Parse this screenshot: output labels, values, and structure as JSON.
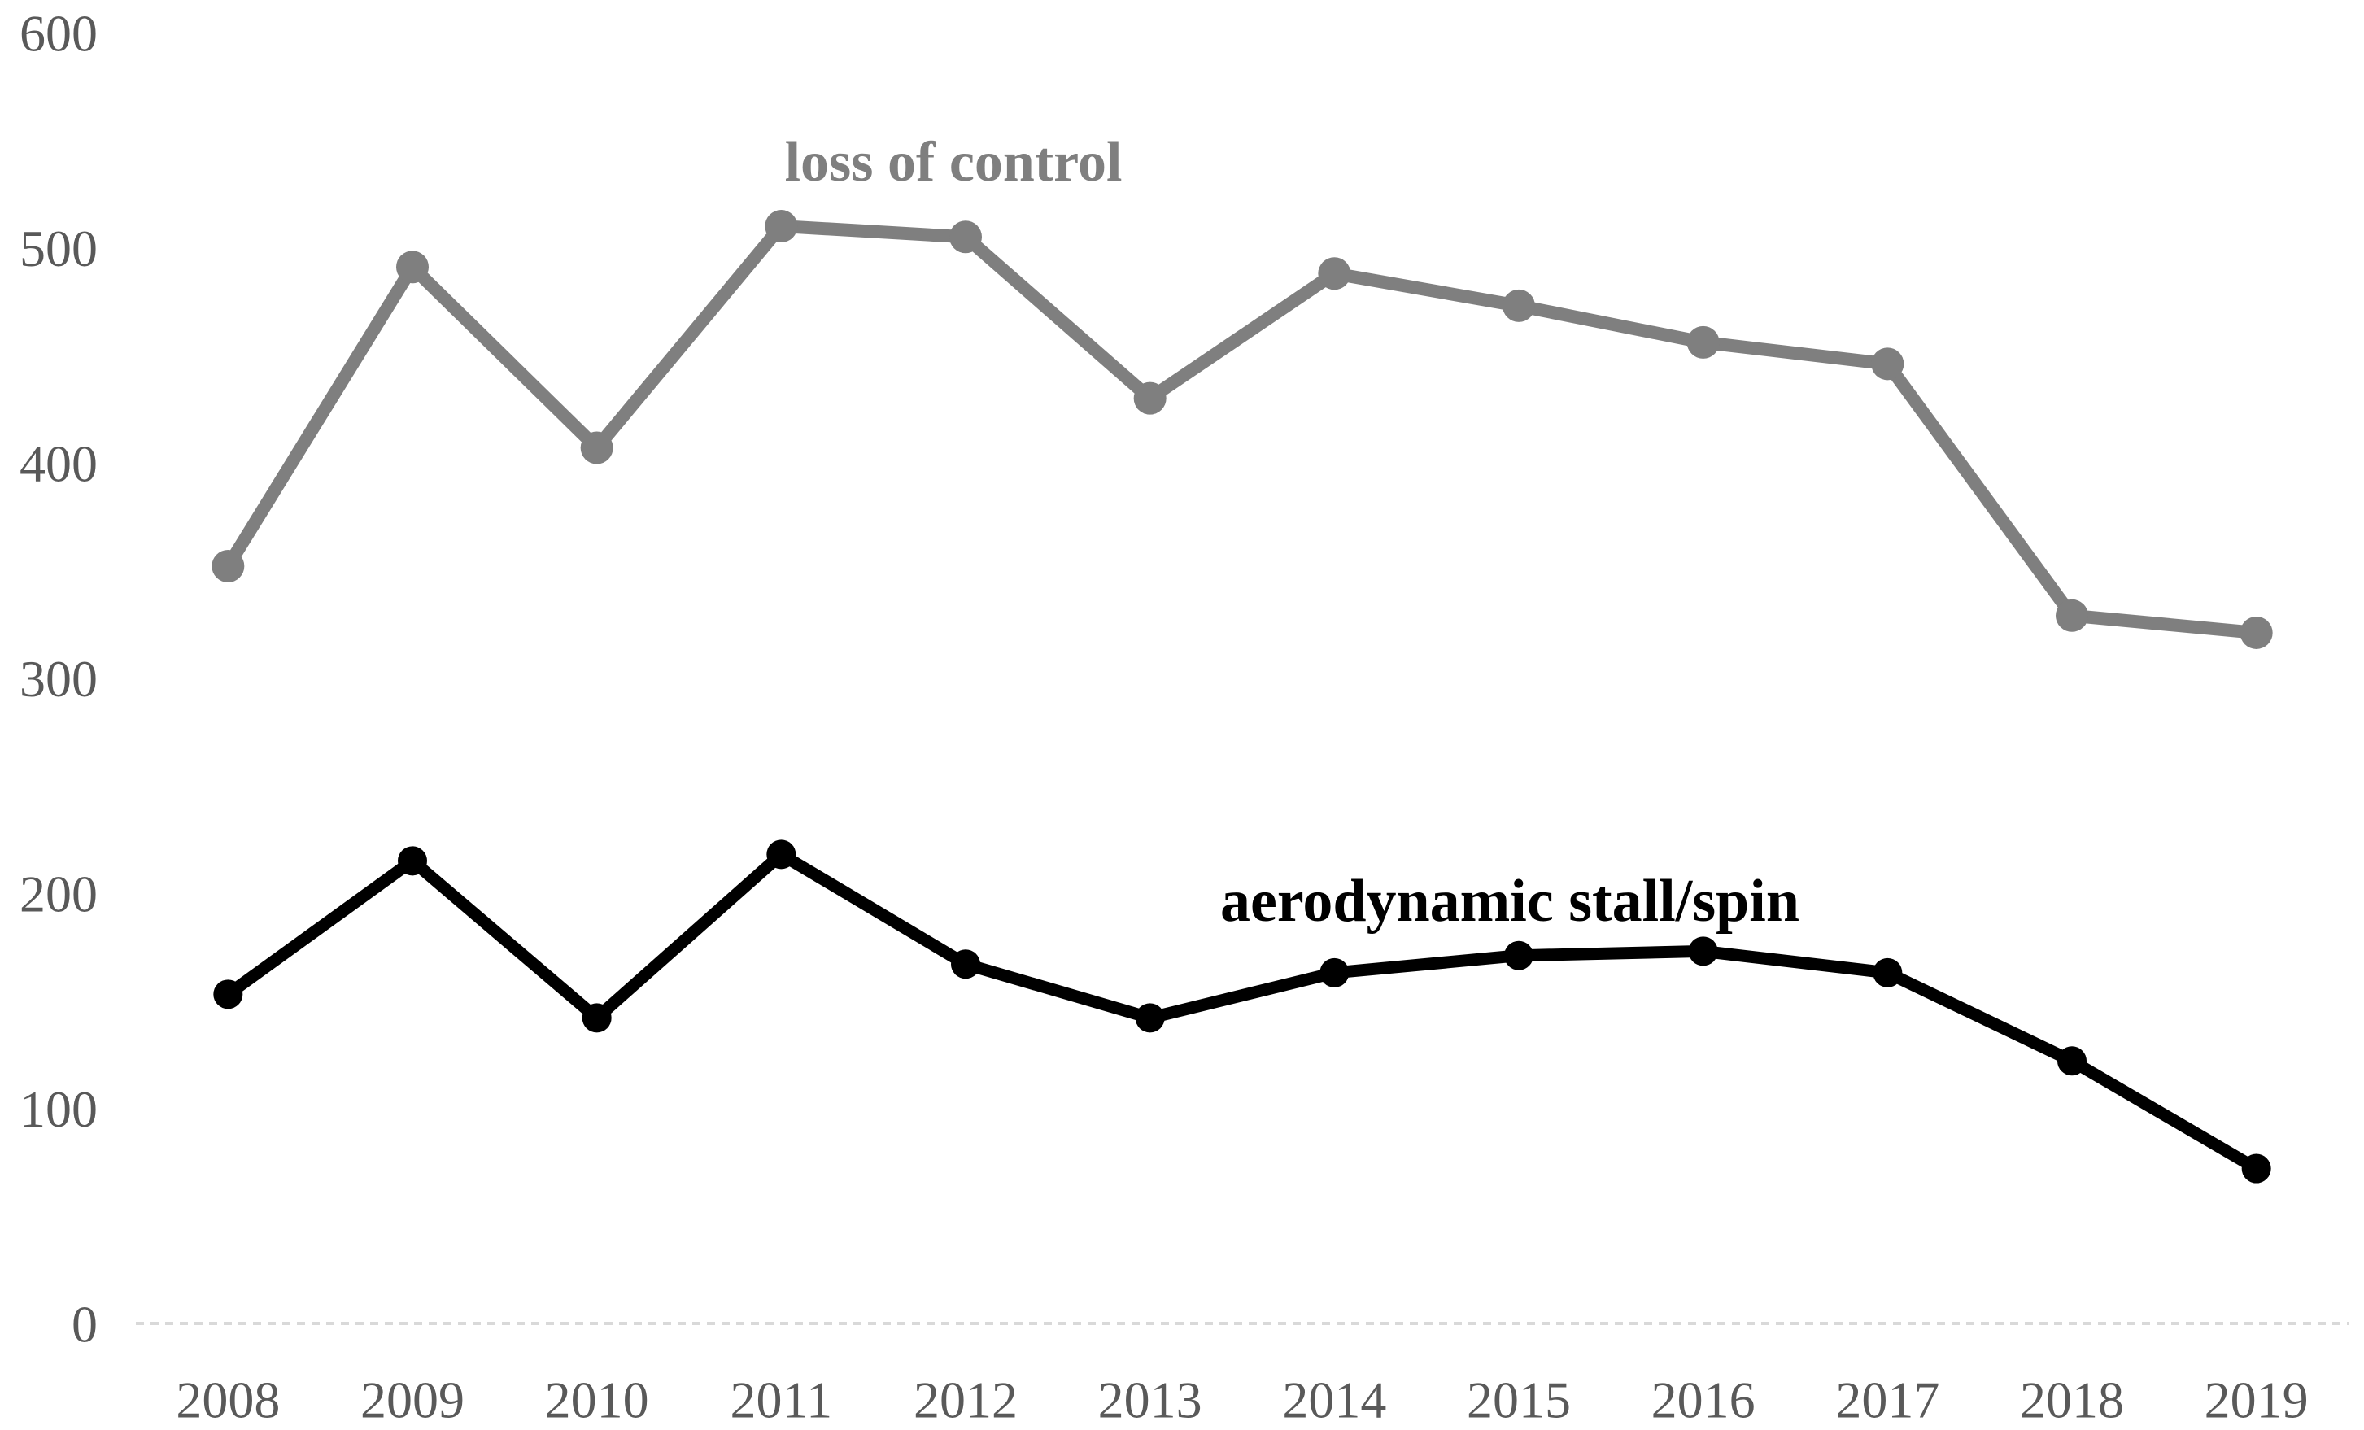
{
  "chart_data": {
    "type": "line",
    "title": "",
    "xlabel": "",
    "ylabel": "",
    "categories": [
      "2008",
      "2009",
      "2010",
      "2011",
      "2012",
      "2013",
      "2014",
      "2015",
      "2016",
      "2017",
      "2018",
      "2019"
    ],
    "series": [
      {
        "name": "loss of control",
        "color": "#7f7f7f",
        "values": [
          352,
          491,
          407,
          510,
          505,
          430,
          488,
          473,
          456,
          446,
          329,
          321
        ]
      },
      {
        "name": "aerodynamic stall/spin",
        "color": "#000000",
        "values": [
          153,
          215,
          142,
          218,
          167,
          142,
          163,
          171,
          173,
          163,
          122,
          72
        ]
      }
    ],
    "ylim": [
      0,
      600
    ],
    "y_ticks": [
      0,
      100,
      200,
      300,
      400,
      500,
      600
    ],
    "grid": "baseline-only",
    "legend_position": "inline-labels-near-lines"
  },
  "axis_style": {
    "tick_label_color": "#595959",
    "baseline_color": "#d9d9d9"
  }
}
